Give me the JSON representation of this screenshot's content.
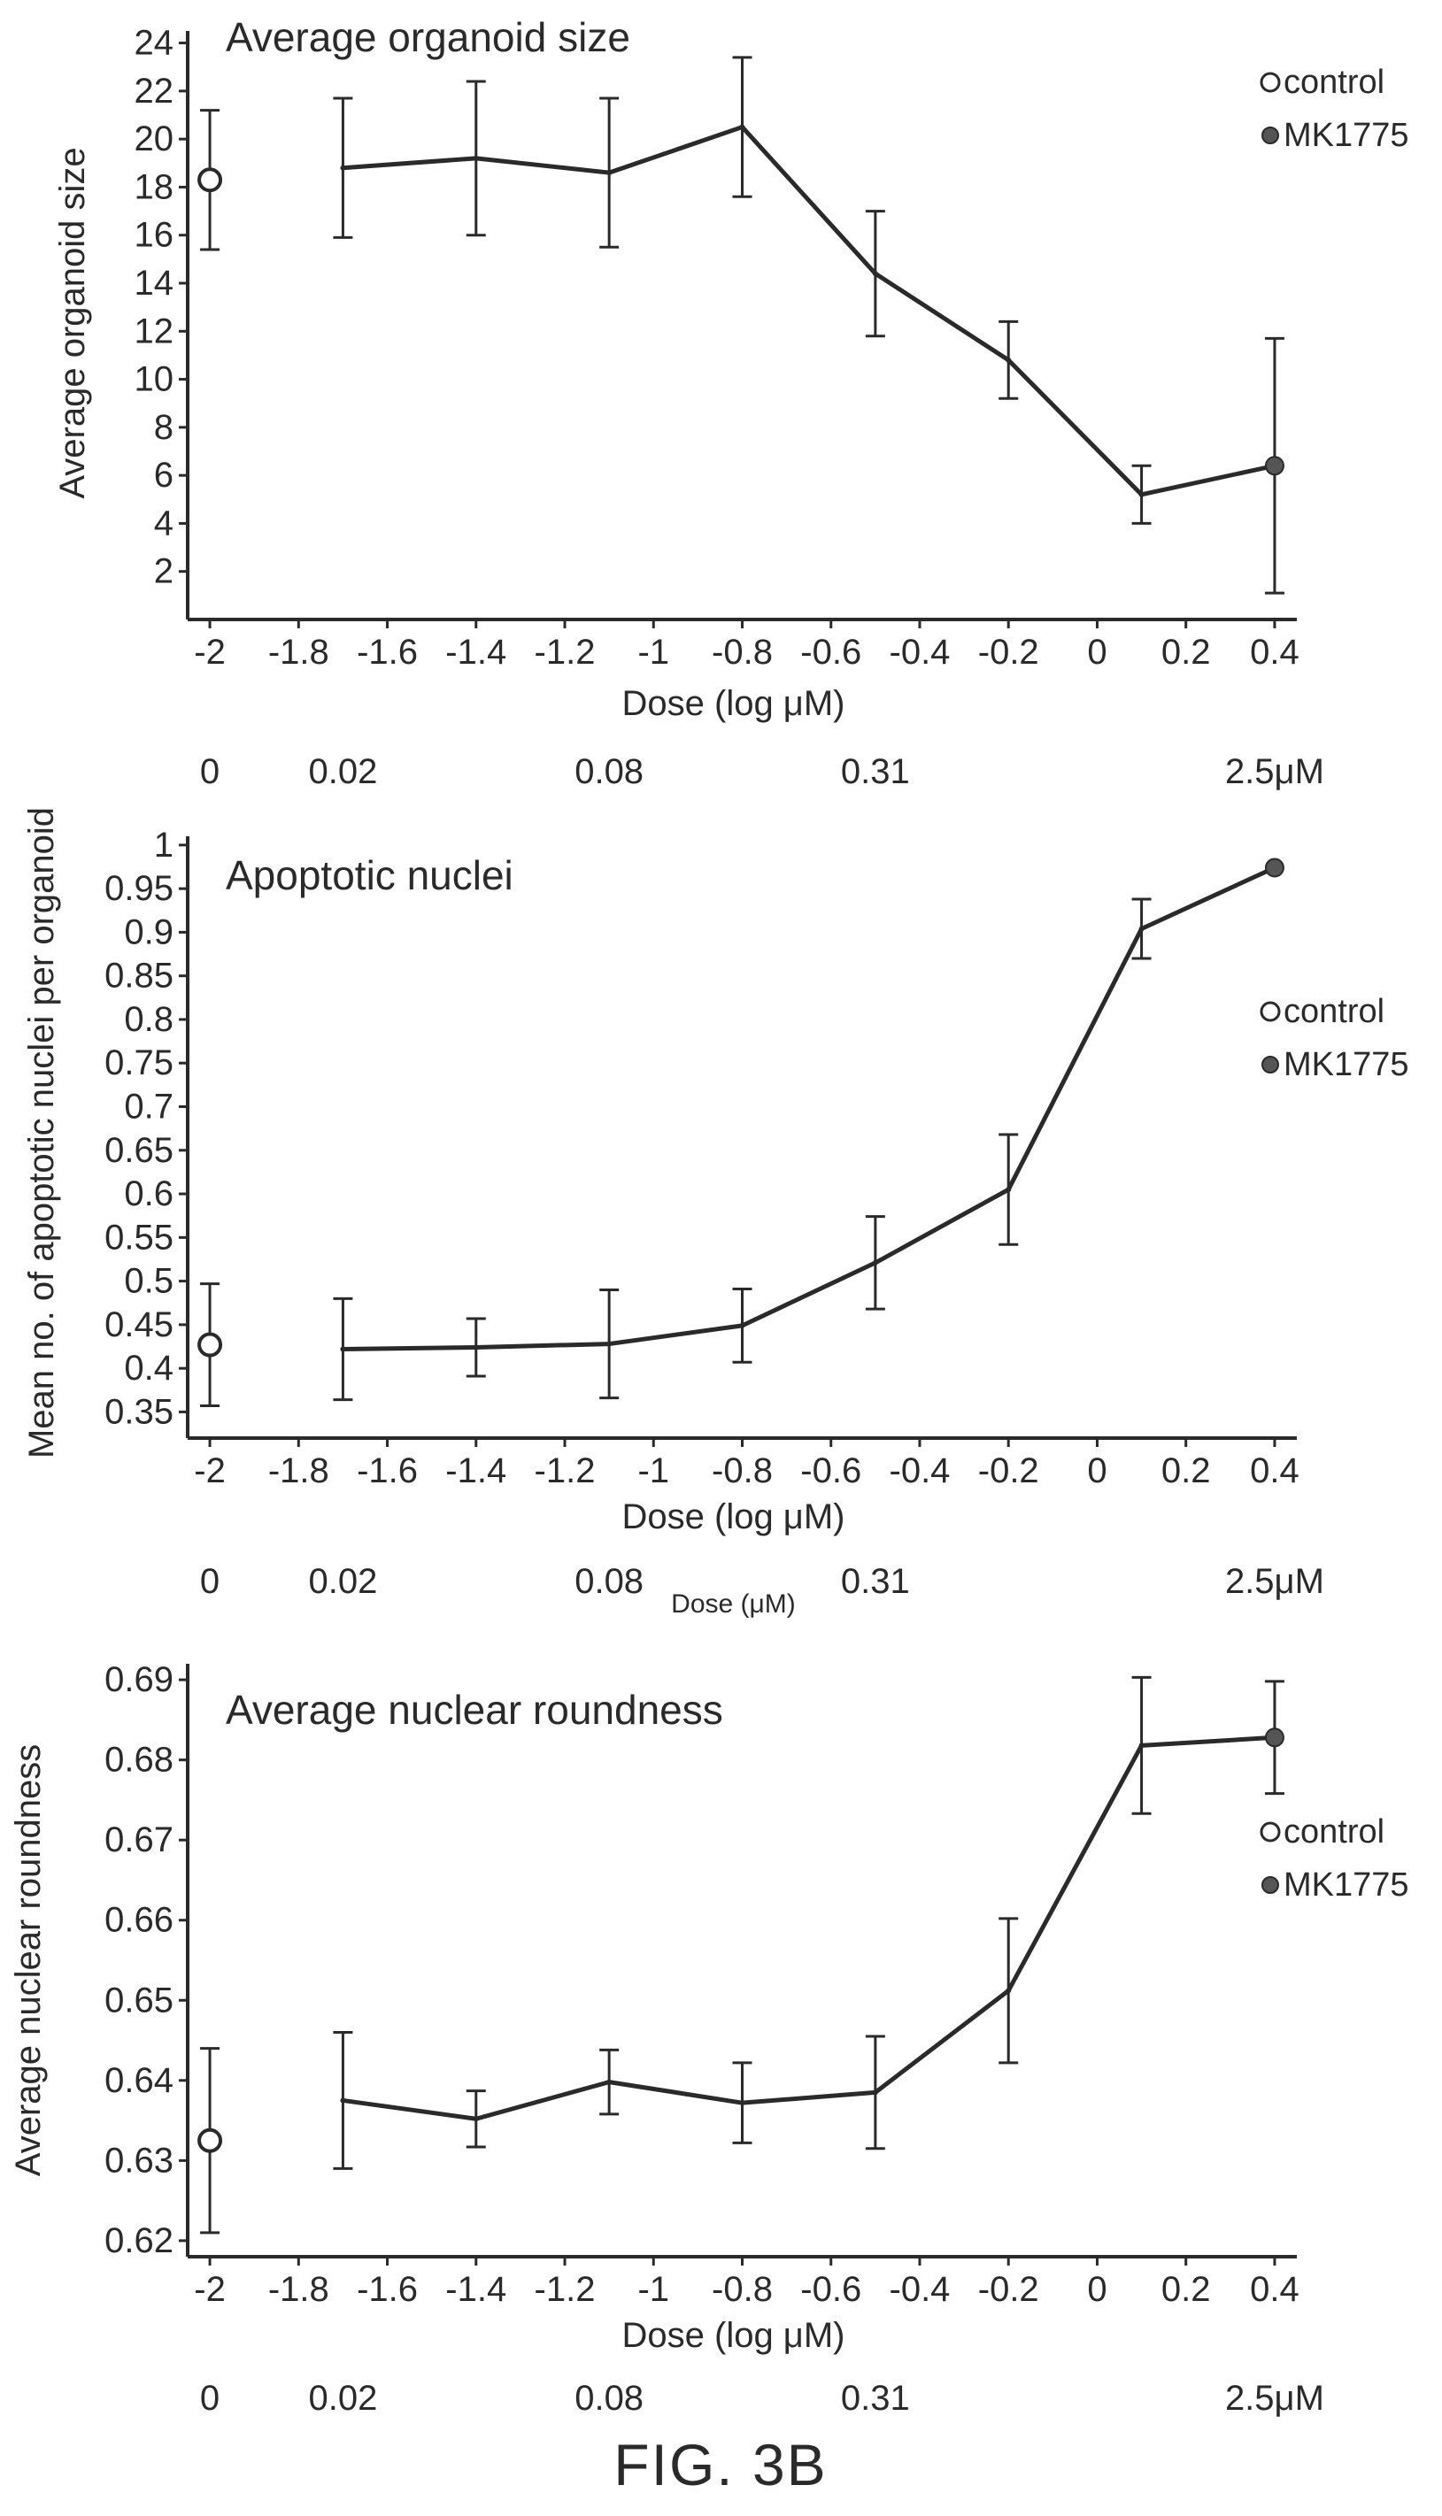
{
  "figure_label": "FIG. 3B",
  "chart_data": [
    {
      "type": "line",
      "title": "Average organoid size",
      "xlabel": "Dose (log μM)",
      "ylabel": "Average organoid size",
      "x_ticks": [
        "-2",
        "-1.8",
        "-1.6",
        "-1.4",
        "-1.2",
        "-1",
        "-0.8",
        "-0.6",
        "-0.4",
        "-0.2",
        "0",
        "0.2",
        "0.4"
      ],
      "y_ticks": [
        "2",
        "4",
        "6",
        "8",
        "10",
        "12",
        "14",
        "16",
        "18",
        "20",
        "22",
        "24"
      ],
      "xlim": [
        -2.05,
        0.45
      ],
      "ylim": [
        0,
        24.5
      ],
      "secondary_axis_labels": [
        {
          "x": -2,
          "label": "0"
        },
        {
          "x": -1.7,
          "label": "0.02"
        },
        {
          "x": -1.1,
          "label": "0.08"
        },
        {
          "x": -0.5,
          "label": "0.31"
        },
        {
          "x": 0.4,
          "label": "2.5μM"
        }
      ],
      "secondary_axis_title": "",
      "legend": {
        "position": "top-right",
        "entries": [
          "control",
          "MK1775"
        ]
      },
      "series": [
        {
          "name": "control",
          "marker": "open",
          "connected": false,
          "points": [
            {
              "x": -2,
              "y": 18.3,
              "err": 2.9
            }
          ]
        },
        {
          "name": "MK1775",
          "marker": "filled-at-end",
          "connected": true,
          "points": [
            {
              "x": -1.7,
              "y": 18.8,
              "err": 2.9
            },
            {
              "x": -1.4,
              "y": 19.2,
              "err": 3.2
            },
            {
              "x": -1.1,
              "y": 18.6,
              "err": 3.1
            },
            {
              "x": -0.8,
              "y": 20.5,
              "err": 2.9
            },
            {
              "x": -0.5,
              "y": 14.4,
              "err": 2.6
            },
            {
              "x": -0.2,
              "y": 10.8,
              "err": 1.6
            },
            {
              "x": 0.1,
              "y": 5.2,
              "err": 1.2
            },
            {
              "x": 0.4,
              "y": 6.4,
              "err": 5.3
            }
          ]
        }
      ]
    },
    {
      "type": "line",
      "title": "Apoptotic nuclei",
      "xlabel": "Dose (log μM)",
      "ylabel": "Mean no. of apoptotic nuclei per organoid",
      "x_ticks": [
        "-2",
        "-1.8",
        "-1.6",
        "-1.4",
        "-1.2",
        "-1",
        "-0.8",
        "-0.6",
        "-0.4",
        "-0.2",
        "0",
        "0.2",
        "0.4"
      ],
      "y_ticks": [
        "0.35",
        "0.4",
        "0.45",
        "0.5",
        "0.55",
        "0.6",
        "0.65",
        "0.7",
        "0.75",
        "0.8",
        "0.85",
        "0.9",
        "0.95",
        "1"
      ],
      "xlim": [
        -2.05,
        0.45
      ],
      "ylim": [
        0.32,
        1.01
      ],
      "secondary_axis_labels": [
        {
          "x": -2,
          "label": "0"
        },
        {
          "x": -1.7,
          "label": "0.02"
        },
        {
          "x": -1.1,
          "label": "0.08"
        },
        {
          "x": -0.5,
          "label": "0.31"
        },
        {
          "x": 0.4,
          "label": "2.5μM"
        }
      ],
      "secondary_axis_title": "Dose (μM)",
      "legend": {
        "position": "right",
        "entries": [
          "control",
          "MK1775"
        ]
      },
      "series": [
        {
          "name": "control",
          "marker": "open",
          "connected": false,
          "points": [
            {
              "x": -2,
              "y": 0.427,
              "err": 0.07
            }
          ]
        },
        {
          "name": "MK1775",
          "marker": "filled-at-end",
          "connected": true,
          "points": [
            {
              "x": -1.7,
              "y": 0.422,
              "err": 0.058
            },
            {
              "x": -1.4,
              "y": 0.424,
              "err": 0.033
            },
            {
              "x": -1.1,
              "y": 0.428,
              "err": 0.062
            },
            {
              "x": -0.8,
              "y": 0.449,
              "err": 0.042
            },
            {
              "x": -0.5,
              "y": 0.521,
              "err": 0.053
            },
            {
              "x": -0.2,
              "y": 0.605,
              "err": 0.063
            },
            {
              "x": 0.1,
              "y": 0.904,
              "err": 0.034
            },
            {
              "x": 0.4,
              "y": 0.974,
              "err": 0
            }
          ]
        }
      ]
    },
    {
      "type": "line",
      "title": "Average nuclear roundness",
      "xlabel": "Dose (log μM)",
      "ylabel": "Average nuclear roundness",
      "x_ticks": [
        "-2",
        "-1.8",
        "-1.6",
        "-1.4",
        "-1.2",
        "-1",
        "-0.8",
        "-0.6",
        "-0.4",
        "-0.2",
        "0",
        "0.2",
        "0.4"
      ],
      "y_ticks": [
        "0.62",
        "0.63",
        "0.64",
        "0.65",
        "0.66",
        "0.67",
        "0.68",
        "0.69"
      ],
      "xlim": [
        -2.05,
        0.45
      ],
      "ylim": [
        0.618,
        0.692
      ],
      "secondary_axis_labels": [
        {
          "x": -2,
          "label": "0"
        },
        {
          "x": -1.7,
          "label": "0.02"
        },
        {
          "x": -1.1,
          "label": "0.08"
        },
        {
          "x": -0.5,
          "label": "0.31"
        },
        {
          "x": 0.4,
          "label": "2.5μM"
        }
      ],
      "secondary_axis_title": "",
      "legend": {
        "position": "right",
        "entries": [
          "control",
          "MK1775"
        ]
      },
      "series": [
        {
          "name": "control",
          "marker": "open",
          "connected": false,
          "points": [
            {
              "x": -2,
              "y": 0.6325,
              "err": 0.0115
            }
          ]
        },
        {
          "name": "MK1775",
          "marker": "filled-at-end",
          "connected": true,
          "points": [
            {
              "x": -1.7,
              "y": 0.6375,
              "err": 0.0085
            },
            {
              "x": -1.4,
              "y": 0.6352,
              "err": 0.0035
            },
            {
              "x": -1.1,
              "y": 0.6398,
              "err": 0.004
            },
            {
              "x": -0.8,
              "y": 0.6372,
              "err": 0.005
            },
            {
              "x": -0.5,
              "y": 0.6385,
              "err": 0.007
            },
            {
              "x": -0.2,
              "y": 0.6512,
              "err": 0.009
            },
            {
              "x": 0.1,
              "y": 0.6818,
              "err": 0.0085
            },
            {
              "x": 0.4,
              "y": 0.6828,
              "err": 0.007
            }
          ]
        }
      ]
    }
  ]
}
